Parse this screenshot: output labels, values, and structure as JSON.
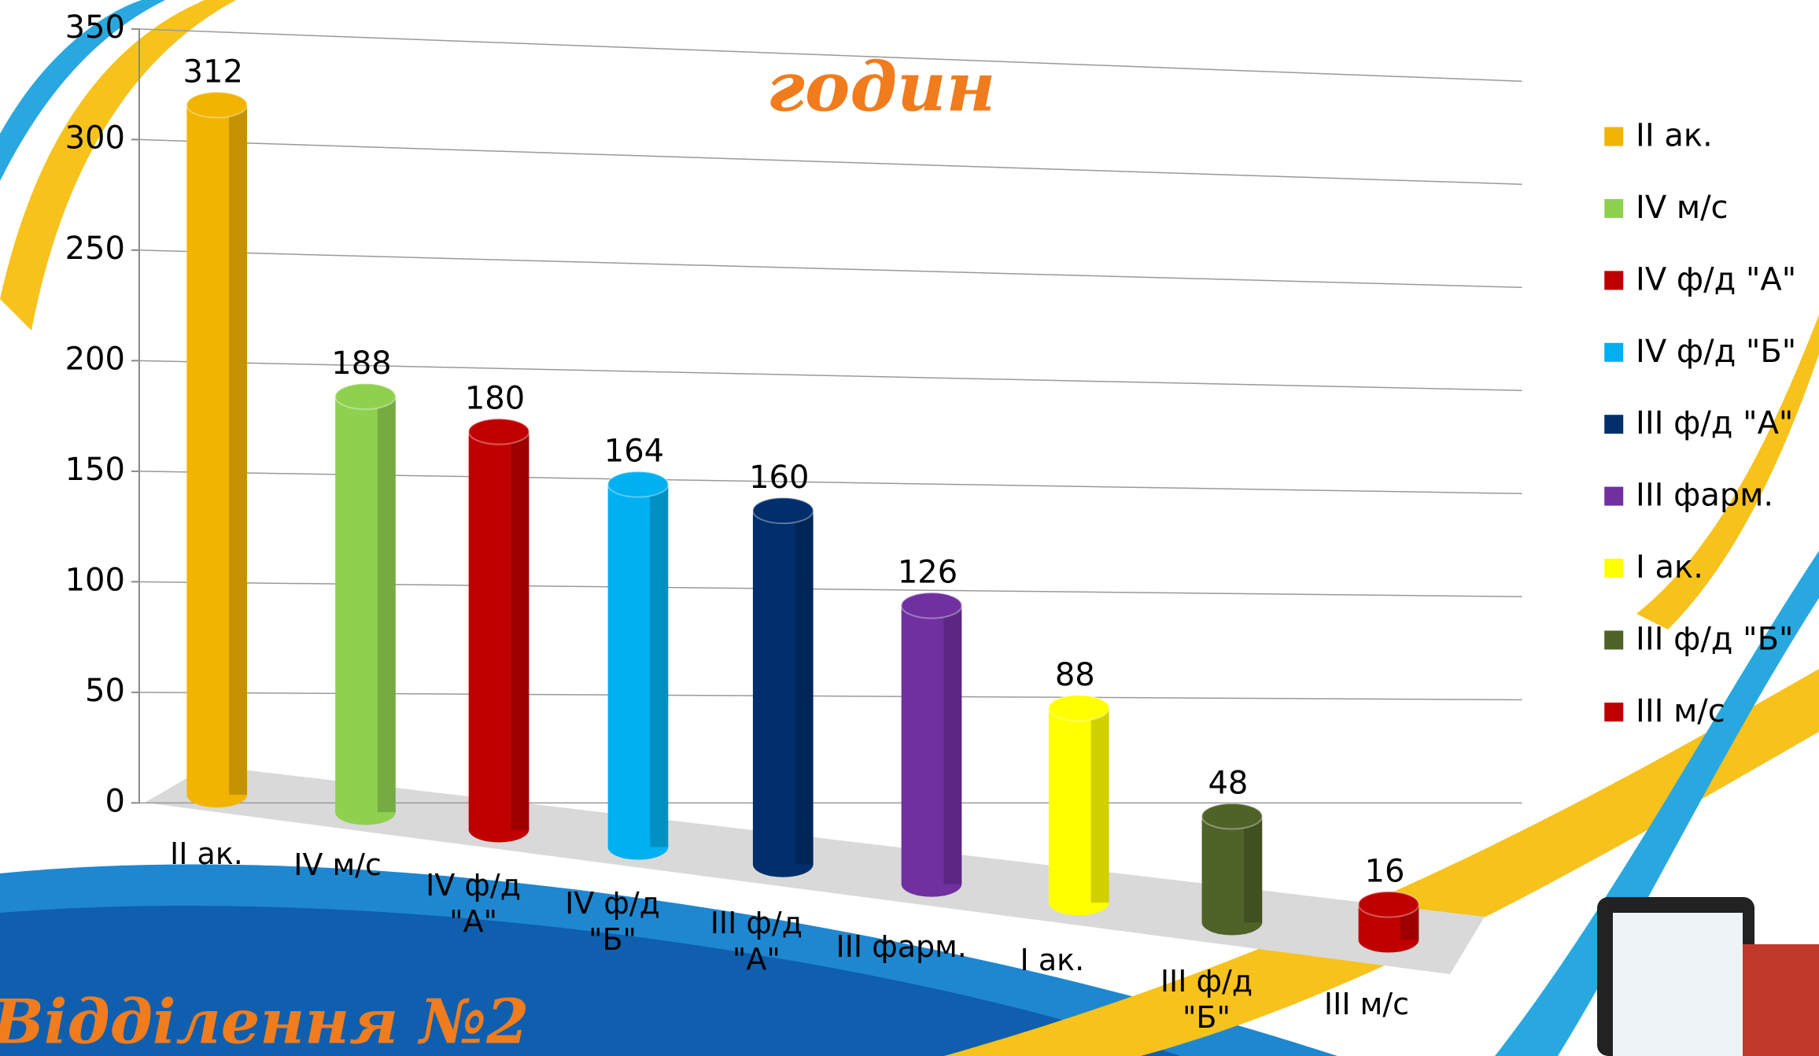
{
  "chart_data": {
    "type": "bar",
    "title": "годин",
    "footer": "Відділення №2",
    "categories": [
      "II ак.",
      "IV м/с",
      "IV ф/д \"А\"",
      "IV ф/д \"Б\"",
      "III ф/д \"А\"",
      "III фарм.",
      "I ак.",
      "III ф/д \"Б\"",
      "III м/с"
    ],
    "values": [
      312,
      188,
      180,
      164,
      160,
      126,
      88,
      48,
      16
    ],
    "colors": [
      "#f2b400",
      "#8fd14f",
      "#c00000",
      "#00b0f0",
      "#002f6c",
      "#7030a0",
      "#ffff00",
      "#4f6228",
      "#c00000"
    ],
    "ylim": [
      0,
      350
    ],
    "yticks": [
      0,
      50,
      100,
      150,
      200,
      250,
      300,
      350
    ],
    "grid": true,
    "legend": "right"
  }
}
